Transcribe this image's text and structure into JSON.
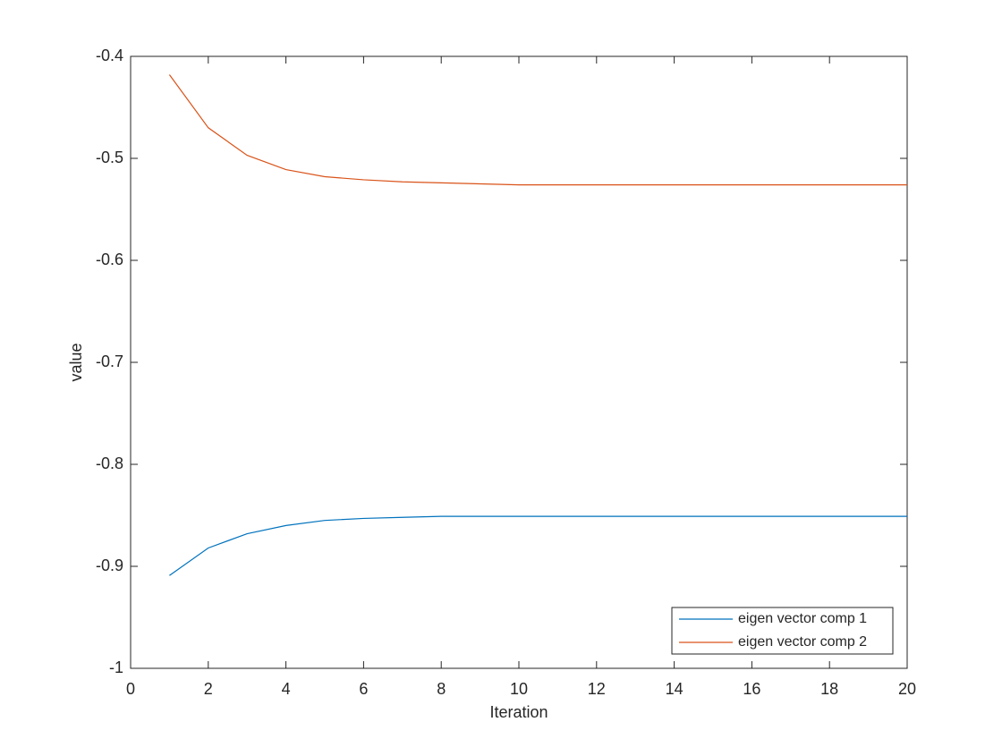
{
  "chart_data": {
    "type": "line",
    "x_label": "Iteration",
    "y_label": "value",
    "x": [
      1,
      2,
      3,
      4,
      5,
      6,
      7,
      8,
      9,
      10,
      11,
      12,
      13,
      14,
      15,
      16,
      17,
      18,
      19,
      20
    ],
    "series": [
      {
        "name": "eigen vector comp 1",
        "color": "#0072BD",
        "values": [
          -0.909,
          -0.882,
          -0.868,
          -0.86,
          -0.855,
          -0.853,
          -0.852,
          -0.851,
          -0.851,
          -0.851,
          -0.851,
          -0.851,
          -0.851,
          -0.851,
          -0.851,
          -0.851,
          -0.851,
          -0.851,
          -0.851,
          -0.851
        ]
      },
      {
        "name": "eigen vector comp 2",
        "color": "#D95319",
        "values": [
          -0.418,
          -0.47,
          -0.497,
          -0.511,
          -0.518,
          -0.521,
          -0.523,
          -0.524,
          -0.525,
          -0.526,
          -0.526,
          -0.526,
          -0.526,
          -0.526,
          -0.526,
          -0.526,
          -0.526,
          -0.526,
          -0.526,
          -0.526
        ]
      }
    ],
    "xlim": [
      0,
      20
    ],
    "xticks": [
      0,
      2,
      4,
      6,
      8,
      10,
      12,
      14,
      16,
      18,
      20
    ],
    "ylim": [
      -1,
      -0.4
    ],
    "yticks": [
      -1,
      -0.9,
      -0.8,
      -0.7,
      -0.6,
      -0.5,
      -0.4
    ],
    "grid": false,
    "legend_position": "lower-right"
  }
}
